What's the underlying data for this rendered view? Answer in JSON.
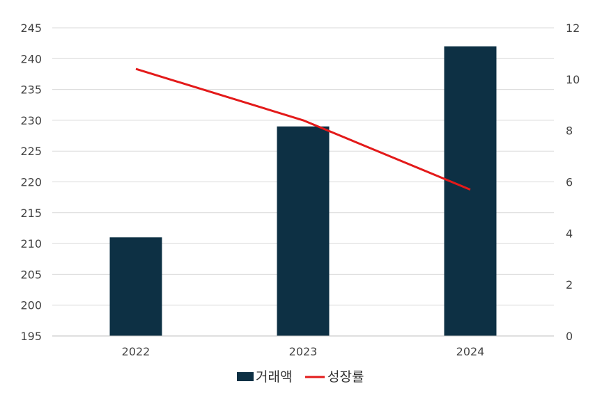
{
  "chart_data": {
    "type": "bar",
    "categories": [
      "2022",
      "2023",
      "2024"
    ],
    "series": [
      {
        "name": "거래액",
        "type": "bar",
        "axis": "left",
        "color": "#0d3044",
        "values": [
          211,
          229,
          242
        ]
      },
      {
        "name": "성장률",
        "type": "line",
        "axis": "right",
        "color": "#e31a1a",
        "values": [
          10.4,
          8.4,
          5.7
        ]
      }
    ],
    "y_left": {
      "min": 195,
      "max": 245,
      "ticks": [
        "195",
        "200",
        "205",
        "210",
        "215",
        "220",
        "225",
        "230",
        "235",
        "240",
        "245"
      ]
    },
    "y_right": {
      "min": 0,
      "max": 12,
      "ticks": [
        "0",
        "2",
        "4",
        "6",
        "8",
        "10",
        "12"
      ]
    },
    "grid": true,
    "legend_position": "bottom"
  }
}
